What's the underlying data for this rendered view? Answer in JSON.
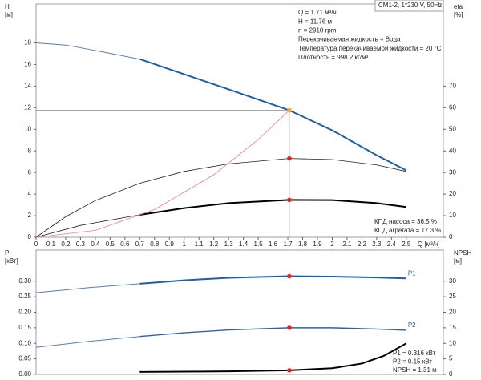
{
  "chart_data": [
    {
      "type": "line",
      "title": "CM1-2, 1*230 V, 50Hz",
      "ylabel": [
        "H",
        "[м]"
      ],
      "y2label": [
        "eta",
        "[%]"
      ],
      "xlabel": "Q [м³/ч]",
      "xlim": [
        0,
        2.75
      ],
      "xticks": [
        0,
        0.1,
        0.2,
        0.3,
        0.4,
        0.5,
        0.6,
        0.7,
        0.8,
        0.9,
        1,
        1.1,
        1.2,
        1.3,
        1.4,
        1.5,
        1.6,
        1.7,
        1.8,
        1.9,
        2,
        2.1,
        2.2,
        2.3,
        2.4,
        2.5
      ],
      "ylim": [
        0,
        21.6
      ],
      "yticks": [
        0,
        2,
        4,
        6,
        8,
        10,
        12,
        14,
        16,
        18
      ],
      "y2lim": [
        0,
        108
      ],
      "y2ticks": [
        0,
        10,
        20,
        30,
        40,
        50,
        60,
        70
      ],
      "series": [
        {
          "color": "#5a7db0",
          "width": 1,
          "x": [
            0,
            0.2,
            0.4,
            0.7
          ],
          "values": [
            18,
            17.8,
            17.3,
            16.5
          ]
        },
        {
          "color": "#1f5ea8",
          "width": 2,
          "x": [
            0.7,
            1.0,
            1.3,
            1.71,
            2.0,
            2.3,
            2.5
          ],
          "values": [
            16.5,
            15.1,
            13.7,
            11.76,
            9.9,
            7.6,
            6.2
          ]
        },
        {
          "color": "#222222",
          "width": 0.8,
          "axis": "y2",
          "x": [
            0,
            0.2,
            0.4,
            0.7,
            1.0,
            1.3,
            1.71,
            2.0,
            2.3,
            2.5
          ],
          "values": [
            0,
            9.5,
            17,
            25,
            30.5,
            34,
            36.5,
            36,
            33.5,
            30.5
          ]
        },
        {
          "color": "#222222",
          "width": 0.8,
          "axis": "y2",
          "x": [
            0,
            0.3,
            0.7
          ],
          "values": [
            0,
            5.5,
            10.4
          ]
        },
        {
          "color": "#000000",
          "width": 2,
          "axis": "y2",
          "x": [
            0.7,
            1.0,
            1.3,
            1.71,
            2.0,
            2.3,
            2.5
          ],
          "values": [
            10.4,
            13.5,
            15.8,
            17.3,
            17.2,
            15.8,
            14
          ]
        },
        {
          "color": "#f08080",
          "width": 0.8,
          "x": [
            0,
            0.4,
            0.8,
            1.2,
            1.5,
            1.71
          ],
          "values": [
            0,
            0.64,
            2.57,
            5.79,
            9.05,
            11.76
          ]
        }
      ],
      "points": [
        {
          "x": 1.71,
          "value": 11.76,
          "color": "#f5a623",
          "drop": true
        },
        {
          "x": 1.71,
          "value": 36.5,
          "axis": "y2",
          "color": "#e8231d"
        },
        {
          "x": 1.71,
          "value": 17.3,
          "axis": "y2",
          "color": "#e8231d"
        }
      ],
      "annotations": [
        "Q = 1.71 м³/ч",
        "H = 11.76 м",
        "n = 2910 rpm",
        "Перекачиваемая жидкость = Вода",
        "Температура перекачиваемой жидкости = 20 °C",
        "Плотность = 998.2 кг/м³"
      ],
      "notes": [
        "КПД насоса = 36.5 %",
        "КПД агрегата = 17.3 %"
      ]
    },
    {
      "type": "line",
      "ylabel": [
        "P",
        "[кВт]"
      ],
      "y2label": [
        "NPSH",
        "[м]"
      ],
      "xlim": [
        0,
        2.75
      ],
      "ylim": [
        0,
        0.4
      ],
      "yticks": [
        {
          "value": 0,
          "label": "0.00"
        },
        {
          "value": 0.05,
          "label": "0.05"
        },
        {
          "value": 0.1,
          "label": "0.10"
        },
        {
          "value": 0.15,
          "label": "0.15"
        },
        {
          "value": 0.2,
          "label": "0.20"
        },
        {
          "value": 0.25,
          "label": "0.25"
        },
        {
          "value": 0.3,
          "label": "0.30"
        }
      ],
      "y2lim": [
        0,
        40
      ],
      "y2ticks": [
        0,
        5,
        10,
        15,
        20,
        25,
        30
      ],
      "series": [
        {
          "color": "#5a7db0",
          "width": 1,
          "x": [
            0,
            0.35,
            0.7
          ],
          "values": [
            0.263,
            0.279,
            0.292
          ]
        },
        {
          "name": "P1",
          "color": "#1f5ea8",
          "width": 2,
          "x": [
            0.7,
            1.0,
            1.3,
            1.71,
            2.0,
            2.3,
            2.5
          ],
          "values": [
            0.292,
            0.303,
            0.311,
            0.316,
            0.315,
            0.312,
            0.309
          ]
        },
        {
          "color": "#5a7db0",
          "width": 1,
          "x": [
            0,
            0.35,
            0.7
          ],
          "values": [
            0.087,
            0.106,
            0.122
          ]
        },
        {
          "name": "P2",
          "color": "#2a63a8",
          "width": 1.4,
          "x": [
            0.7,
            1.0,
            1.3,
            1.71,
            2.0,
            2.3,
            2.5
          ],
          "values": [
            0.122,
            0.134,
            0.143,
            0.15,
            0.15,
            0.146,
            0.142
          ]
        },
        {
          "color": "#000000",
          "width": 2,
          "axis": "y2",
          "x": [
            0.7,
            1.0,
            1.3,
            1.71,
            2.0,
            2.2,
            2.35,
            2.5
          ],
          "values": [
            0.8,
            0.9,
            1.0,
            1.31,
            2,
            3.5,
            6,
            10
          ]
        }
      ],
      "points": [
        {
          "x": 1.71,
          "value": 0.316,
          "color": "#e8231d"
        },
        {
          "x": 1.71,
          "value": 0.15,
          "color": "#e8231d"
        },
        {
          "x": 1.71,
          "value": 1.31,
          "axis": "y2",
          "color": "#e8231d"
        }
      ],
      "annotations": [
        "P1 = 0.316 кВт",
        "P2 = 0.15 кВт",
        "NPSH = 1.31 м"
      ]
    }
  ]
}
